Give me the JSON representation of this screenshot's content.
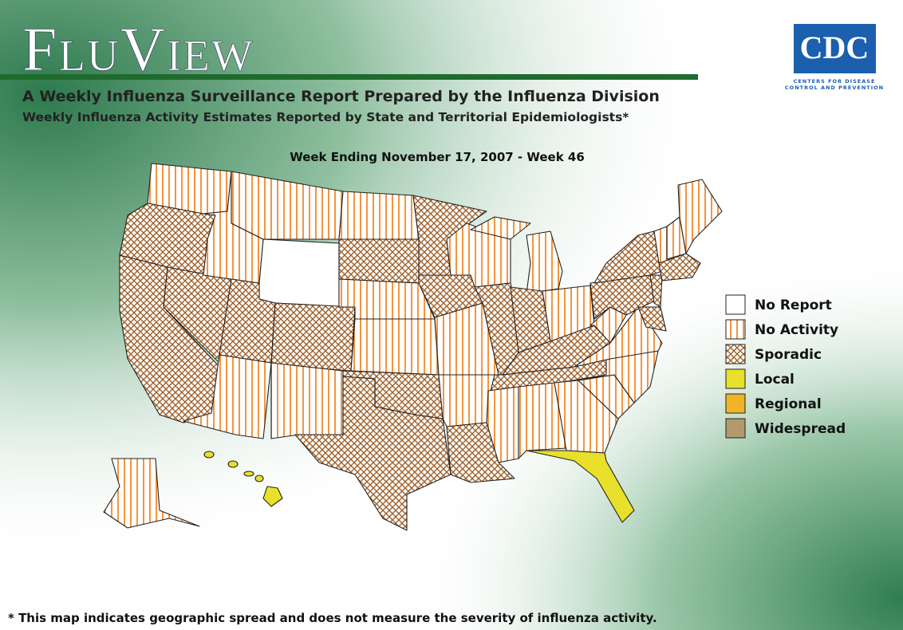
{
  "header": {
    "title": "FluView",
    "logo": "CDC",
    "logo_caption": [
      "Centers for Disease",
      "Control and Prevention"
    ],
    "subtitle": "A Weekly Influenza Surveillance Report Prepared by the Influenza Division",
    "subtitle2": "Weekly Influenza Activity Estimates Reported by State and Territorial Epidemiologists*"
  },
  "map": {
    "week": "Week Ending November 17, 2007 - Week 46",
    "legend": [
      "No Report",
      "No Activity",
      "Sporadic",
      "Local",
      "Regional",
      "Widespread"
    ]
  },
  "footnote": "* This map indicates geographic spread and does not measure the severity of influenza activity."
}
